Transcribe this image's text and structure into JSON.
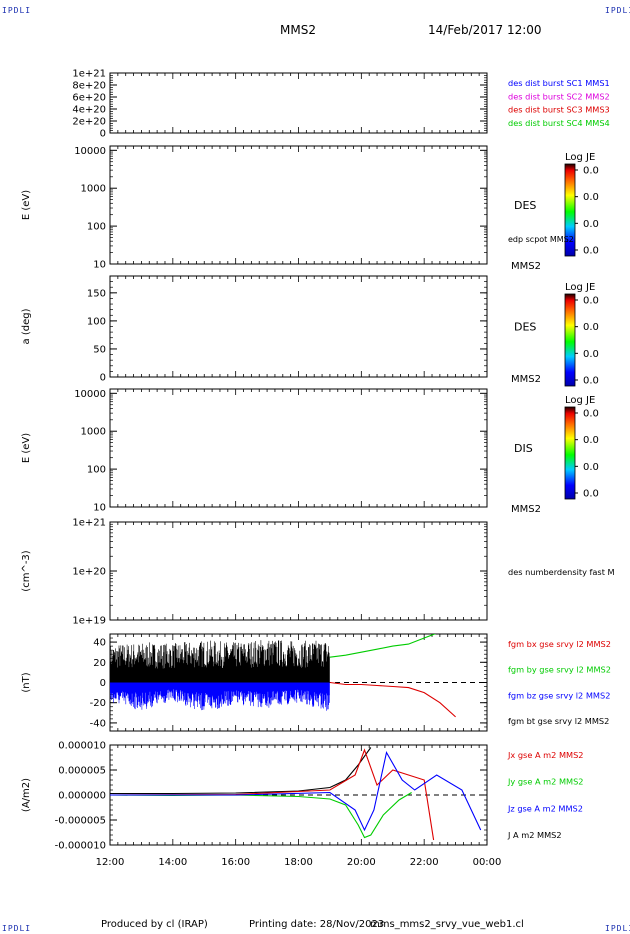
{
  "corner_tl": "IPDLI",
  "corner_tr": "IPDLI",
  "corner_bl": "IPDLI",
  "corner_br": "IPDLI",
  "header": {
    "spacecraft": "MMS2",
    "datetime": "14/Feb/2017 12:00"
  },
  "footer": {
    "produced_by": "Produced by cl (IRAP)",
    "printing_date": "Printing date: 28/Nov/2023",
    "product": "mms_mms2_srvy_vue_web1.cl"
  },
  "colors": {
    "black": "#000000",
    "blue": "#0000ff",
    "green": "#00cc00",
    "red": "#dd0000",
    "magenta": "#dd00dd"
  },
  "chart_data": [
    {
      "type": "line",
      "ylabel": "",
      "yticks": [
        "0",
        "2e+20",
        "4e+20",
        "6e+20",
        "8e+20",
        "1e+21"
      ],
      "ylim": [
        0,
        1e+21
      ],
      "reference_line": 0,
      "legend": [
        {
          "label": "des dist burst SC1 MMS1",
          "color": "#0000ff"
        },
        {
          "label": "des dist burst SC2 MMS2",
          "color": "#dd00dd"
        },
        {
          "label": "des dist burst SC3 MMS3",
          "color": "#dd0000"
        },
        {
          "label": "des dist burst SC4 MMS4",
          "color": "#00cc00"
        }
      ]
    },
    {
      "type": "heatmap",
      "ylabel": "E (eV)",
      "yscale": "log",
      "yticks": [
        "10",
        "100",
        "1000",
        "10000"
      ],
      "ylim": [
        10,
        13000
      ],
      "panel_label": "DES",
      "overlay_label": "edp scpot MMS2",
      "spacecraft_label": "MMS2",
      "colorbar": {
        "title": "Log JE",
        "ticks": [
          "0.0",
          "0.0",
          "0.0",
          "0.0"
        ]
      }
    },
    {
      "type": "heatmap",
      "ylabel": "a (deg)",
      "yticks": [
        "0",
        "50",
        "100",
        "150"
      ],
      "ylim": [
        0,
        180
      ],
      "panel_label": "DES",
      "spacecraft_label": "MMS2",
      "colorbar": {
        "title": "Log JE",
        "ticks": [
          "0.0",
          "0.0",
          "0.0",
          "0.0"
        ]
      }
    },
    {
      "type": "heatmap",
      "ylabel": "E (eV)",
      "yscale": "log",
      "yticks": [
        "10",
        "100",
        "1000",
        "10000"
      ],
      "ylim": [
        10,
        13000
      ],
      "panel_label": "DIS",
      "spacecraft_label": "MMS2",
      "colorbar": {
        "title": "Log JE",
        "ticks": [
          "0.0",
          "0.0",
          "0.0",
          "0.0"
        ]
      }
    },
    {
      "type": "line",
      "ylabel": "(cm^-3)",
      "yscale": "log",
      "yticks": [
        "1e+19",
        "1e+20",
        "1e+21"
      ],
      "ylim": [
        1e+19,
        1e+21
      ],
      "legend": [
        {
          "label": "des numberdensity fast M",
          "color": "#000000"
        }
      ]
    },
    {
      "type": "line",
      "ylabel": "(nT)",
      "yticks": [
        "-40",
        "-20",
        "0",
        "20",
        "40"
      ],
      "ylim": [
        -48,
        48
      ],
      "reference_line": 0,
      "legend": [
        {
          "label": "fgm bx gse srvy l2 MMS2",
          "color": "#dd0000"
        },
        {
          "label": "fgm by gse srvy l2 MMS2",
          "color": "#00cc00"
        },
        {
          "label": "fgm bz gse srvy l2 MMS2",
          "color": "#0000ff"
        },
        {
          "label": "fgm bt gse srvy l2 MMS2",
          "color": "#000000"
        }
      ],
      "series": [
        {
          "name": "fgm bt gse srvy l2 MMS2",
          "color": "#000000",
          "x": [
            12.0,
            13.0,
            14.0,
            15.0,
            16.0,
            17.0,
            18.0,
            19.0
          ],
          "y": [
            38,
            40,
            39,
            42,
            40,
            44,
            41,
            43
          ]
        },
        {
          "name": "fgm bz gse srvy l2 MMS2",
          "color": "#0000ff",
          "x": [
            12.0,
            13.0,
            14.0,
            15.0,
            16.0,
            17.0,
            18.0,
            19.0
          ],
          "y": [
            -20,
            -28,
            -18,
            -30,
            -22,
            -26,
            -20,
            -30
          ]
        },
        {
          "name": "fgm by gse srvy l2 MMS2",
          "color": "#00cc00",
          "x": [
            19.0,
            19.5,
            20.0,
            20.5,
            21.0,
            21.5,
            22.0,
            22.5
          ],
          "y": [
            25,
            27,
            30,
            33,
            36,
            38,
            44,
            50
          ]
        },
        {
          "name": "fgm bx gse srvy l2 MMS2",
          "color": "#dd0000",
          "x": [
            19.0,
            19.5,
            20.0,
            20.5,
            21.0,
            21.5,
            22.0,
            22.5,
            23.0
          ],
          "y": [
            0,
            -2,
            -2,
            -3,
            -4,
            -5,
            -10,
            -20,
            -34
          ]
        }
      ]
    },
    {
      "type": "line",
      "ylabel": "(A/m2)",
      "yticks": [
        "-0.000010",
        "-0.000005",
        "0.000000",
        "0.000005",
        "0.000010"
      ],
      "ylim": [
        -1e-05,
        1e-05
      ],
      "reference_line": 0,
      "xticks": [
        "12:00",
        "14:00",
        "16:00",
        "18:00",
        "20:00",
        "22:00",
        "00:00"
      ],
      "xlim": [
        12,
        24
      ],
      "legend": [
        {
          "label": "Jx gse A m2 MMS2",
          "color": "#dd0000"
        },
        {
          "label": "Jy gse A m2 MMS2",
          "color": "#00cc00"
        },
        {
          "label": "Jz gse A m2 MMS2",
          "color": "#0000ff"
        },
        {
          "label": "J A m2 MMS2",
          "color": "#000000"
        }
      ],
      "series": [
        {
          "name": "J A m2 MMS2",
          "color": "#000000",
          "x": [
            12.0,
            14.0,
            16.0,
            18.0,
            19.0,
            19.5,
            19.9,
            20.3
          ],
          "y": [
            3e-07,
            3e-07,
            4e-07,
            8e-07,
            1.5e-06,
            3e-06,
            6e-06,
            9.5e-06
          ]
        },
        {
          "name": "Jy gse A m2 MMS2",
          "color": "#00cc00",
          "x": [
            12.0,
            14.0,
            16.0,
            18.0,
            19.0,
            19.5,
            19.9,
            20.1,
            20.3,
            20.7,
            21.2,
            21.6
          ],
          "y": [
            0.0,
            -1e-07,
            0.0,
            -3e-07,
            -8e-07,
            -2e-06,
            -6e-06,
            -8.5e-06,
            -8e-06,
            -4e-06,
            -1e-06,
            5e-07
          ]
        },
        {
          "name": "Jx gse A m2 MMS2",
          "color": "#dd0000",
          "x": [
            12.0,
            16.0,
            19.0,
            19.8,
            20.1,
            20.5,
            21.0,
            21.5,
            22.0,
            22.3
          ],
          "y": [
            0.0,
            1e-07,
            1e-06,
            4e-06,
            9e-06,
            2e-06,
            5e-06,
            4e-06,
            3e-06,
            -9e-06
          ]
        },
        {
          "name": "Jz gse A m2 MMS2",
          "color": "#0000ff",
          "x": [
            12.0,
            16.0,
            19.0,
            19.8,
            20.1,
            20.4,
            20.8,
            21.3,
            21.7,
            22.4,
            23.2,
            23.8
          ],
          "y": [
            0.0,
            0.0,
            5e-07,
            -3e-06,
            -7e-06,
            -3e-06,
            8.5e-06,
            3e-06,
            1e-06,
            4e-06,
            1e-06,
            -7e-06
          ]
        }
      ]
    }
  ]
}
